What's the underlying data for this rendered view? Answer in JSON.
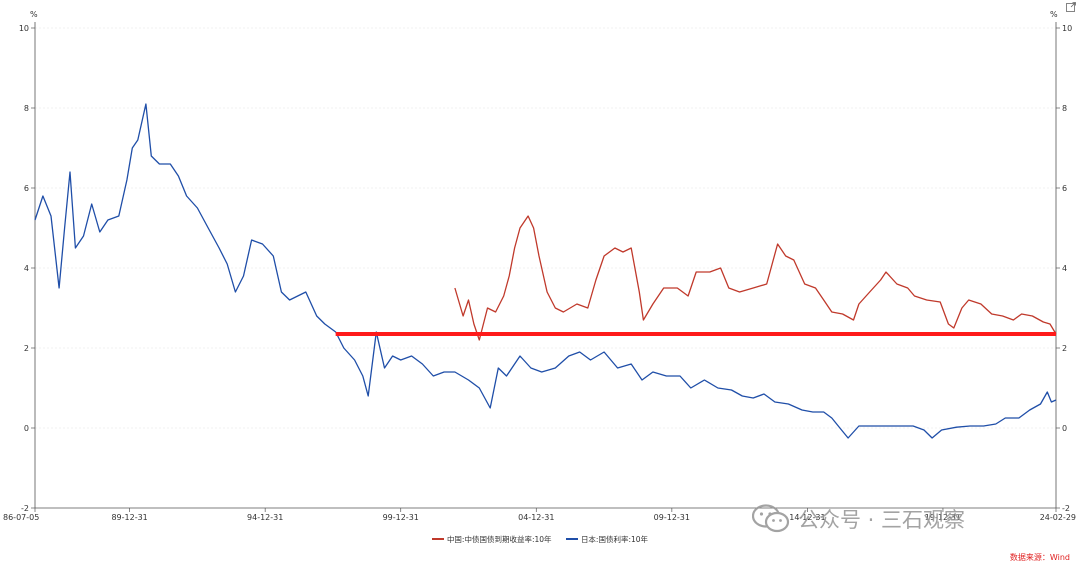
{
  "chart_data": {
    "type": "line",
    "unit_left": "%",
    "unit_right": "%",
    "ylim": [
      -2,
      10
    ],
    "yticks": [
      "10",
      "8",
      "6",
      "4",
      "2",
      "0",
      "-2"
    ],
    "xticks": [
      "86-07-05",
      "89-12-31",
      "94-12-31",
      "99-12-31",
      "04-12-31",
      "09-12-31",
      "14-12-31",
      "19-12-31",
      "24-02-29"
    ],
    "series": [
      {
        "name": "中国:中债国债到期收益率:10年",
        "color": "#c0392b",
        "points": [
          [
            2002.0,
            3.5
          ],
          [
            2002.3,
            2.8
          ],
          [
            2002.5,
            3.2
          ],
          [
            2002.7,
            2.6
          ],
          [
            2002.9,
            2.2
          ],
          [
            2003.2,
            3.0
          ],
          [
            2003.5,
            2.9
          ],
          [
            2003.8,
            3.3
          ],
          [
            2004.0,
            3.8
          ],
          [
            2004.2,
            4.5
          ],
          [
            2004.4,
            5.0
          ],
          [
            2004.7,
            5.3
          ],
          [
            2004.9,
            5.0
          ],
          [
            2005.1,
            4.3
          ],
          [
            2005.4,
            3.4
          ],
          [
            2005.7,
            3.0
          ],
          [
            2006.0,
            2.9
          ],
          [
            2006.5,
            3.1
          ],
          [
            2006.9,
            3.0
          ],
          [
            2007.2,
            3.7
          ],
          [
            2007.5,
            4.3
          ],
          [
            2007.9,
            4.5
          ],
          [
            2008.2,
            4.4
          ],
          [
            2008.5,
            4.5
          ],
          [
            2008.8,
            3.4
          ],
          [
            2008.95,
            2.7
          ],
          [
            2009.3,
            3.1
          ],
          [
            2009.7,
            3.5
          ],
          [
            2010.2,
            3.5
          ],
          [
            2010.6,
            3.3
          ],
          [
            2010.9,
            3.9
          ],
          [
            2011.4,
            3.9
          ],
          [
            2011.8,
            4.0
          ],
          [
            2012.1,
            3.5
          ],
          [
            2012.5,
            3.4
          ],
          [
            2013.0,
            3.5
          ],
          [
            2013.5,
            3.6
          ],
          [
            2013.9,
            4.6
          ],
          [
            2014.2,
            4.3
          ],
          [
            2014.5,
            4.2
          ],
          [
            2014.9,
            3.6
          ],
          [
            2015.3,
            3.5
          ],
          [
            2015.6,
            3.2
          ],
          [
            2015.9,
            2.9
          ],
          [
            2016.3,
            2.85
          ],
          [
            2016.7,
            2.7
          ],
          [
            2016.9,
            3.1
          ],
          [
            2017.3,
            3.4
          ],
          [
            2017.7,
            3.7
          ],
          [
            2017.9,
            3.9
          ],
          [
            2018.3,
            3.6
          ],
          [
            2018.7,
            3.5
          ],
          [
            2018.95,
            3.3
          ],
          [
            2019.4,
            3.2
          ],
          [
            2019.9,
            3.15
          ],
          [
            2020.2,
            2.6
          ],
          [
            2020.4,
            2.5
          ],
          [
            2020.7,
            3.0
          ],
          [
            2020.95,
            3.2
          ],
          [
            2021.4,
            3.1
          ],
          [
            2021.8,
            2.85
          ],
          [
            2022.2,
            2.8
          ],
          [
            2022.6,
            2.7
          ],
          [
            2022.9,
            2.85
          ],
          [
            2023.3,
            2.8
          ],
          [
            2023.7,
            2.65
          ],
          [
            2023.95,
            2.6
          ],
          [
            2024.17,
            2.35
          ]
        ]
      },
      {
        "name": "日本:国债利率:10年",
        "color": "#1f4ea8",
        "points": [
          [
            1986.51,
            5.2
          ],
          [
            1986.8,
            5.8
          ],
          [
            1987.1,
            5.3
          ],
          [
            1987.4,
            3.5
          ],
          [
            1987.6,
            5.0
          ],
          [
            1987.8,
            6.4
          ],
          [
            1988.0,
            4.5
          ],
          [
            1988.3,
            4.8
          ],
          [
            1988.6,
            5.6
          ],
          [
            1988.9,
            4.9
          ],
          [
            1989.2,
            5.2
          ],
          [
            1989.6,
            5.3
          ],
          [
            1989.9,
            6.2
          ],
          [
            1990.1,
            7.0
          ],
          [
            1990.3,
            7.2
          ],
          [
            1990.6,
            8.1
          ],
          [
            1990.8,
            6.8
          ],
          [
            1991.1,
            6.6
          ],
          [
            1991.5,
            6.6
          ],
          [
            1991.8,
            6.3
          ],
          [
            1992.1,
            5.8
          ],
          [
            1992.5,
            5.5
          ],
          [
            1992.9,
            5.0
          ],
          [
            1993.3,
            4.5
          ],
          [
            1993.6,
            4.1
          ],
          [
            1993.9,
            3.4
          ],
          [
            1994.2,
            3.8
          ],
          [
            1994.5,
            4.7
          ],
          [
            1994.9,
            4.6
          ],
          [
            1995.3,
            4.3
          ],
          [
            1995.6,
            3.4
          ],
          [
            1995.9,
            3.2
          ],
          [
            1996.2,
            3.3
          ],
          [
            1996.5,
            3.4
          ],
          [
            1996.9,
            2.8
          ],
          [
            1997.2,
            2.6
          ],
          [
            1997.6,
            2.4
          ],
          [
            1997.9,
            2.0
          ],
          [
            1998.3,
            1.7
          ],
          [
            1998.6,
            1.3
          ],
          [
            1998.8,
            0.8
          ],
          [
            1999.1,
            2.4
          ],
          [
            1999.4,
            1.5
          ],
          [
            1999.7,
            1.8
          ],
          [
            2000.0,
            1.7
          ],
          [
            2000.4,
            1.8
          ],
          [
            2000.8,
            1.6
          ],
          [
            2001.2,
            1.3
          ],
          [
            2001.6,
            1.4
          ],
          [
            2002.0,
            1.4
          ],
          [
            2002.5,
            1.2
          ],
          [
            2002.9,
            1.0
          ],
          [
            2003.3,
            0.5
          ],
          [
            2003.6,
            1.5
          ],
          [
            2003.9,
            1.3
          ],
          [
            2004.4,
            1.8
          ],
          [
            2004.8,
            1.5
          ],
          [
            2005.2,
            1.4
          ],
          [
            2005.7,
            1.5
          ],
          [
            2006.2,
            1.8
          ],
          [
            2006.6,
            1.9
          ],
          [
            2007.0,
            1.7
          ],
          [
            2007.5,
            1.9
          ],
          [
            2008.0,
            1.5
          ],
          [
            2008.5,
            1.6
          ],
          [
            2008.9,
            1.2
          ],
          [
            2009.3,
            1.4
          ],
          [
            2009.8,
            1.3
          ],
          [
            2010.3,
            1.3
          ],
          [
            2010.7,
            1.0
          ],
          [
            2011.2,
            1.2
          ],
          [
            2011.7,
            1.0
          ],
          [
            2012.2,
            0.95
          ],
          [
            2012.6,
            0.8
          ],
          [
            2013.0,
            0.75
          ],
          [
            2013.4,
            0.85
          ],
          [
            2013.8,
            0.65
          ],
          [
            2014.3,
            0.6
          ],
          [
            2014.8,
            0.45
          ],
          [
            2015.2,
            0.4
          ],
          [
            2015.6,
            0.4
          ],
          [
            2015.9,
            0.25
          ],
          [
            2016.2,
            0.0
          ],
          [
            2016.5,
            -0.25
          ],
          [
            2016.9,
            0.05
          ],
          [
            2017.4,
            0.05
          ],
          [
            2017.9,
            0.05
          ],
          [
            2018.4,
            0.05
          ],
          [
            2018.9,
            0.05
          ],
          [
            2019.3,
            -0.05
          ],
          [
            2019.6,
            -0.25
          ],
          [
            2019.95,
            -0.05
          ],
          [
            2020.5,
            0.02
          ],
          [
            2021.0,
            0.05
          ],
          [
            2021.5,
            0.05
          ],
          [
            2021.95,
            0.1
          ],
          [
            2022.3,
            0.25
          ],
          [
            2022.8,
            0.25
          ],
          [
            2023.2,
            0.45
          ],
          [
            2023.6,
            0.6
          ],
          [
            2023.85,
            0.9
          ],
          [
            2024.0,
            0.65
          ],
          [
            2024.17,
            0.7
          ]
        ]
      }
    ],
    "reference_line": {
      "y": 2.35,
      "x_start": 1997.6,
      "x_end": 2024.17,
      "color": "#ff1a1a"
    }
  },
  "watermark": {
    "text": "公众号 · 三石观察"
  },
  "source": "数据来源：Wind"
}
